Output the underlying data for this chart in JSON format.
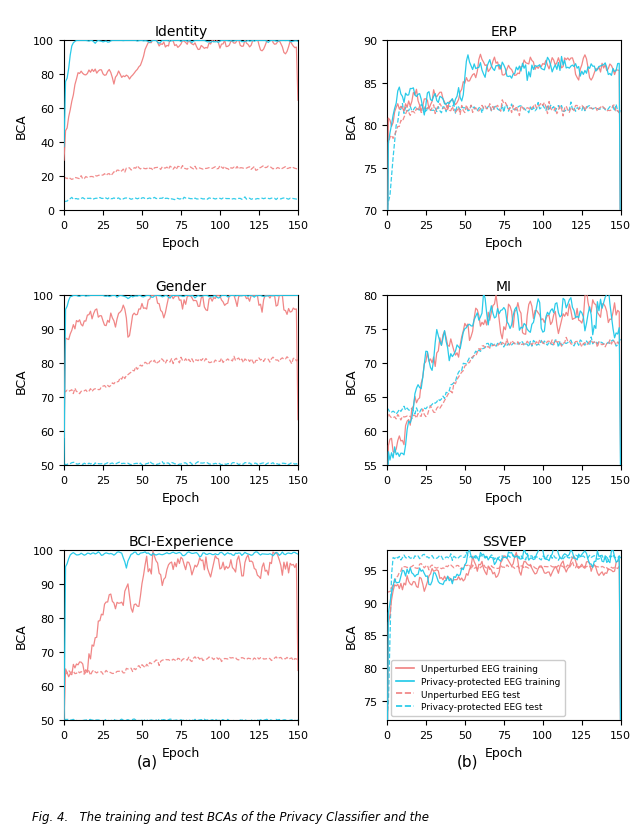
{
  "titles": [
    "Identity",
    "ERP",
    "Gender",
    "MI",
    "BCI-Experience",
    "SSVEP"
  ],
  "ylabel": "BCA",
  "xlabel": "Epoch",
  "caption_a": "(a)",
  "caption_b": "(b)",
  "figure_caption": "Fig. 4.   The training and test BCAs of the Privacy Classifier and the",
  "colors": {
    "salmon": "#F08080",
    "cyan": "#1EC8E8"
  },
  "legend_labels": [
    "Unperturbed EEG training",
    "Privacy-protected EEG training",
    "Unperturbed EEG test",
    "Privacy-protected EEG test"
  ],
  "ylim_map": {
    "Identity": [
      0,
      100
    ],
    "ERP": [
      70,
      90
    ],
    "Gender": [
      50,
      100
    ],
    "MI": [
      55,
      80
    ],
    "BCI-Experience": [
      50,
      100
    ],
    "SSVEP": [
      72,
      98
    ]
  },
  "ytick_map": {
    "Identity": [
      0,
      20,
      40,
      60,
      80,
      100
    ],
    "ERP": [
      70,
      75,
      80,
      85,
      90
    ],
    "Gender": [
      50,
      60,
      70,
      80,
      90,
      100
    ],
    "MI": [
      55,
      60,
      65,
      70,
      75,
      80
    ],
    "BCI-Experience": [
      50,
      60,
      70,
      80,
      90,
      100
    ],
    "SSVEP": [
      75,
      80,
      85,
      90,
      95
    ]
  }
}
